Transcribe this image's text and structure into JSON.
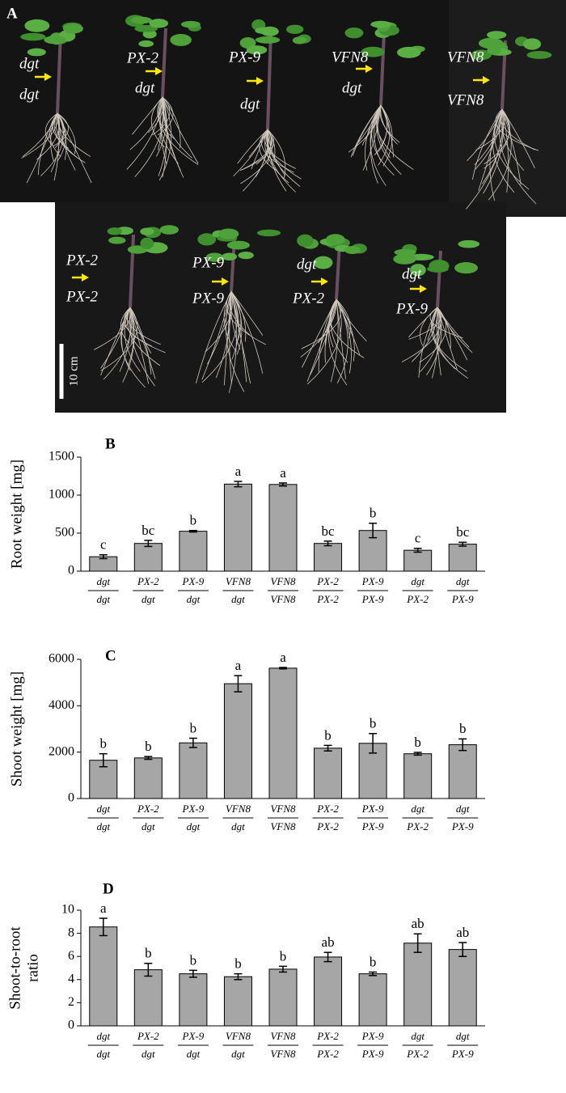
{
  "panel_a": {
    "label": "A",
    "scale_bar": "10 cm",
    "plants": [
      {
        "top": "dgt",
        "bottom": "dgt"
      },
      {
        "top": "PX-2",
        "bottom": "dgt"
      },
      {
        "top": "PX-9",
        "bottom": "dgt"
      },
      {
        "top": "VFN8",
        "bottom": "dgt"
      },
      {
        "top": "VFN8",
        "bottom": "VFN8"
      },
      {
        "top": "PX-2",
        "bottom": "PX-2"
      },
      {
        "top": "PX-9",
        "bottom": "PX-9"
      },
      {
        "top": "dgt",
        "bottom": "PX-2"
      },
      {
        "top": "dgt",
        "bottom": "PX-9"
      }
    ]
  },
  "chart_data": [
    {
      "type": "bar",
      "panel": "B",
      "ylabel": [
        "Root weight [mg]"
      ],
      "color": "#a6a6a6",
      "categories": [
        [
          "dgt",
          "dgt"
        ],
        [
          "PX-2",
          "dgt"
        ],
        [
          "PX-9",
          "dgt"
        ],
        [
          "VFN8",
          "dgt"
        ],
        [
          "VFN8",
          "VFN8"
        ],
        [
          "PX-2",
          "PX-2"
        ],
        [
          "PX-9",
          "PX-9"
        ],
        [
          "dgt",
          "PX-2"
        ],
        [
          "dgt",
          "PX-9"
        ]
      ],
      "values": [
        190,
        365,
        525,
        1145,
        1140,
        365,
        535,
        275,
        355
      ],
      "errors": [
        25,
        40,
        10,
        35,
        20,
        30,
        95,
        25,
        25
      ],
      "letters": [
        "c",
        "bc",
        "b",
        "a",
        "a",
        "bc",
        "b",
        "c",
        "bc"
      ],
      "ylim": [
        0,
        1500
      ],
      "yticks": [
        0,
        500,
        1000,
        1500
      ]
    },
    {
      "type": "bar",
      "panel": "C",
      "ylabel": [
        "Shoot weight [mg]"
      ],
      "color": "#a6a6a6",
      "categories": [
        [
          "dgt",
          "dgt"
        ],
        [
          "PX-2",
          "dgt"
        ],
        [
          "PX-9",
          "dgt"
        ],
        [
          "VFN8",
          "dgt"
        ],
        [
          "VFN8",
          "VFN8"
        ],
        [
          "PX-2",
          "PX-2"
        ],
        [
          "PX-9",
          "PX-9"
        ],
        [
          "dgt",
          "PX-2"
        ],
        [
          "dgt",
          "PX-9"
        ]
      ],
      "values": [
        1650,
        1750,
        2400,
        4950,
        5620,
        2170,
        2380,
        1930,
        2320
      ],
      "errors": [
        280,
        60,
        200,
        350,
        30,
        120,
        420,
        60,
        250
      ],
      "letters": [
        "b",
        "b",
        "b",
        "a",
        "a",
        "b",
        "b",
        "b",
        "b"
      ],
      "ylim": [
        0,
        6000
      ],
      "yticks": [
        0,
        2000,
        4000,
        6000
      ]
    },
    {
      "type": "bar",
      "panel": "D",
      "ylabel": [
        "Shoot-to-root",
        "ratio"
      ],
      "color": "#a6a6a6",
      "categories": [
        [
          "dgt",
          "dgt"
        ],
        [
          "PX-2",
          "dgt"
        ],
        [
          "PX-9",
          "dgt"
        ],
        [
          "VFN8",
          "dgt"
        ],
        [
          "VFN8",
          "VFN8"
        ],
        [
          "PX-2",
          "PX-2"
        ],
        [
          "PX-9",
          "PX-9"
        ],
        [
          "dgt",
          "PX-2"
        ],
        [
          "dgt",
          "PX-9"
        ]
      ],
      "values": [
        8.55,
        4.85,
        4.5,
        4.25,
        4.9,
        5.95,
        4.5,
        7.15,
        6.6
      ],
      "errors": [
        0.75,
        0.55,
        0.3,
        0.25,
        0.25,
        0.4,
        0.15,
        0.8,
        0.6
      ],
      "letters": [
        "a",
        "b",
        "b",
        "b",
        "b",
        "ab",
        "b",
        "ab",
        "ab"
      ],
      "ylim": [
        0,
        10
      ],
      "yticks": [
        0,
        2,
        4,
        6,
        8,
        10
      ]
    }
  ]
}
